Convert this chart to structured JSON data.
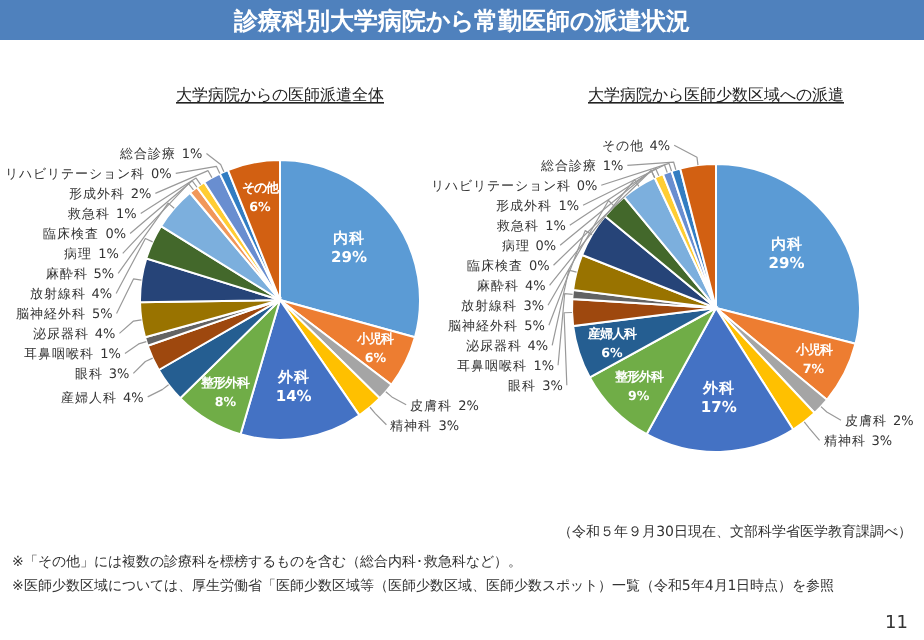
{
  "chart_data": [
    {
      "type": "pie",
      "title": "診療科別大学病院から常勤医師の派遣状況",
      "subtitle": "大学病院からの医師派遣全体",
      "legend": false,
      "categories": [
        "内科",
        "小児科",
        "皮膚科",
        "精神科",
        "外科",
        "整形外科",
        "産婦人科",
        "眼科",
        "耳鼻咽喉科",
        "泌尿器科",
        "脳神経外科",
        "放射線科",
        "麻酔科",
        "病理",
        "臨床検査",
        "救急科",
        "形成外科",
        "リハビリテーション科",
        "総合診療",
        "その他"
      ],
      "values": [
        29,
        6,
        2,
        3,
        14,
        8,
        4,
        3,
        1,
        4,
        5,
        4,
        5,
        1,
        0,
        1,
        2,
        0,
        1,
        6
      ],
      "value_labels": [
        "29%",
        "6%",
        "2%",
        "3%",
        "14%",
        "8%",
        "4%",
        "3%",
        "1%",
        "4%",
        "5%",
        "4%",
        "5%",
        "1%",
        "0%",
        "1%",
        "2%",
        "0%",
        "1%",
        "6%"
      ],
      "colors": [
        "#5b9bd5",
        "#ed7d31",
        "#a5a5a5",
        "#ffc000",
        "#4472c4",
        "#70ad47",
        "#255e91",
        "#9e480e",
        "#636363",
        "#997300",
        "#264478",
        "#43682b",
        "#7cafdd",
        "#f1975a",
        "#b7b7b7",
        "#ffcd33",
        "#698ed0",
        "#8cc168",
        "#327dc2",
        "#d26012"
      ],
      "annotations": [
        "※「その他」には複数の診療科を標榜するものを含む（総合内科･救急科など）。",
        "※医師少数区域については、厚生労働省「医師少数区域等（医師少数区域、医師少数スポット）一覧（令和5年4月1日時点）を参照",
        "11"
      ]
    },
    {
      "type": "pie",
      "subtitle": "大学病院から医師少数区域への派遣",
      "legend": false,
      "categories": [
        "内科",
        "小児科",
        "皮膚科",
        "精神科",
        "外科",
        "整形外科",
        "産婦人科",
        "眼科",
        "耳鼻咽喉科",
        "泌尿器科",
        "脳神経外科",
        "放射線科",
        "麻酔科",
        "病理",
        "臨床検査",
        "救急科",
        "形成外科",
        "リハビリテーション科",
        "総合診療",
        "その他"
      ],
      "values": [
        29,
        7,
        2,
        3,
        17,
        9,
        6,
        3,
        1,
        4,
        5,
        3,
        4,
        0,
        0,
        1,
        1,
        0,
        1,
        4
      ],
      "value_labels": [
        "29%",
        "7%",
        "2%",
        "3%",
        "17%",
        "9%",
        "6%",
        "3%",
        "1%",
        "4%",
        "5%",
        "3%",
        "4%",
        "0%",
        "0%",
        "1%",
        "1%",
        "0%",
        "1%",
        "4%"
      ],
      "colors": [
        "#5b9bd5",
        "#ed7d31",
        "#a5a5a5",
        "#ffc000",
        "#4472c4",
        "#70ad47",
        "#255e91",
        "#9e480e",
        "#636363",
        "#997300",
        "#264478",
        "#43682b",
        "#7cafdd",
        "#f1975a",
        "#b7b7b7",
        "#ffcd33",
        "#698ed0",
        "#8cc168",
        "#327dc2",
        "#d26012"
      ],
      "annotations": [
        "（令和５年９月30日現在、文部科学省医学教育課調べ）"
      ]
    }
  ]
}
